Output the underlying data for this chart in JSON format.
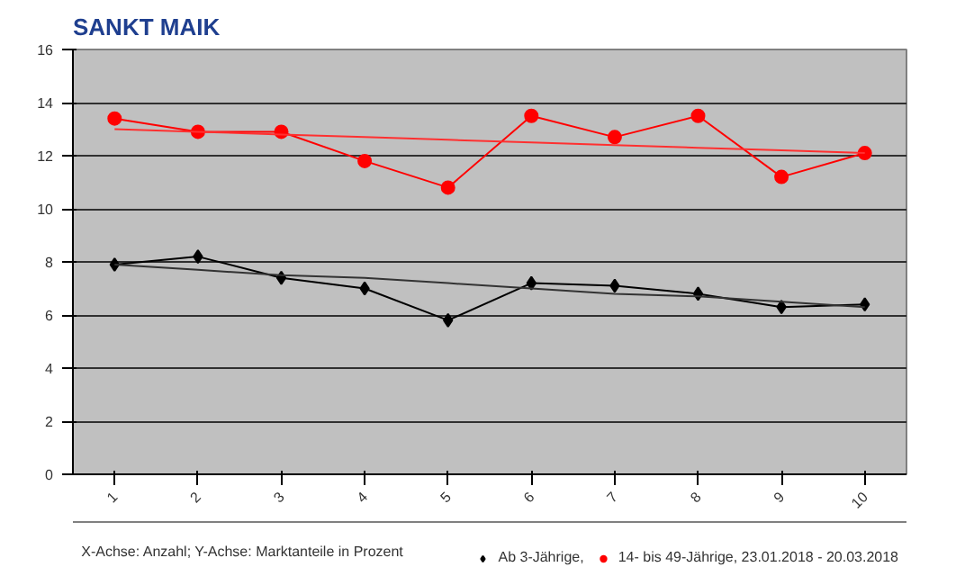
{
  "chart_data": {
    "type": "line",
    "title": "SANKT MAIK",
    "x": [
      1,
      2,
      3,
      4,
      5,
      6,
      7,
      8,
      9,
      10
    ],
    "xlim": [
      0.5,
      10.5
    ],
    "xticks": [
      1,
      2,
      3,
      4,
      5,
      6,
      7,
      8,
      9,
      10
    ],
    "ylim": [
      0,
      16
    ],
    "yticks": [
      0,
      2,
      4,
      6,
      8,
      10,
      12,
      14,
      16
    ],
    "grid": "y",
    "legend": "bottom right",
    "line_style": "solid",
    "series": [
      {
        "name": "Ab 3-Jährige,",
        "color": "#000000",
        "marker": "diamond",
        "values": [
          7.9,
          8.2,
          7.4,
          7.0,
          5.8,
          7.2,
          7.1,
          6.8,
          6.3,
          6.4
        ]
      },
      {
        "name": "14- bis 49-Jährige, 23.01.2018 - 20.03.2018",
        "color": "#ff0000",
        "marker": "circle",
        "values": [
          13.4,
          12.9,
          12.9,
          11.8,
          10.8,
          13.5,
          12.7,
          13.5,
          11.2,
          12.1
        ]
      },
      {
        "type": "line",
        "color": "#333333",
        "marker": "none",
        "values": [
          7.9,
          7.7,
          7.5,
          7.4,
          7.2,
          7.0,
          6.8,
          6.7,
          6.5,
          6.3
        ]
      },
      {
        "type": "line",
        "color": "#ff3030",
        "marker": "none",
        "values": [
          13.0,
          12.9,
          12.8,
          12.7,
          12.6,
          12.5,
          12.4,
          12.3,
          12.2,
          12.1
        ]
      }
    ],
    "annotations": [
      "X-Achse: Anzahl; Y-Achse: Marktanteile in Prozent"
    ]
  }
}
